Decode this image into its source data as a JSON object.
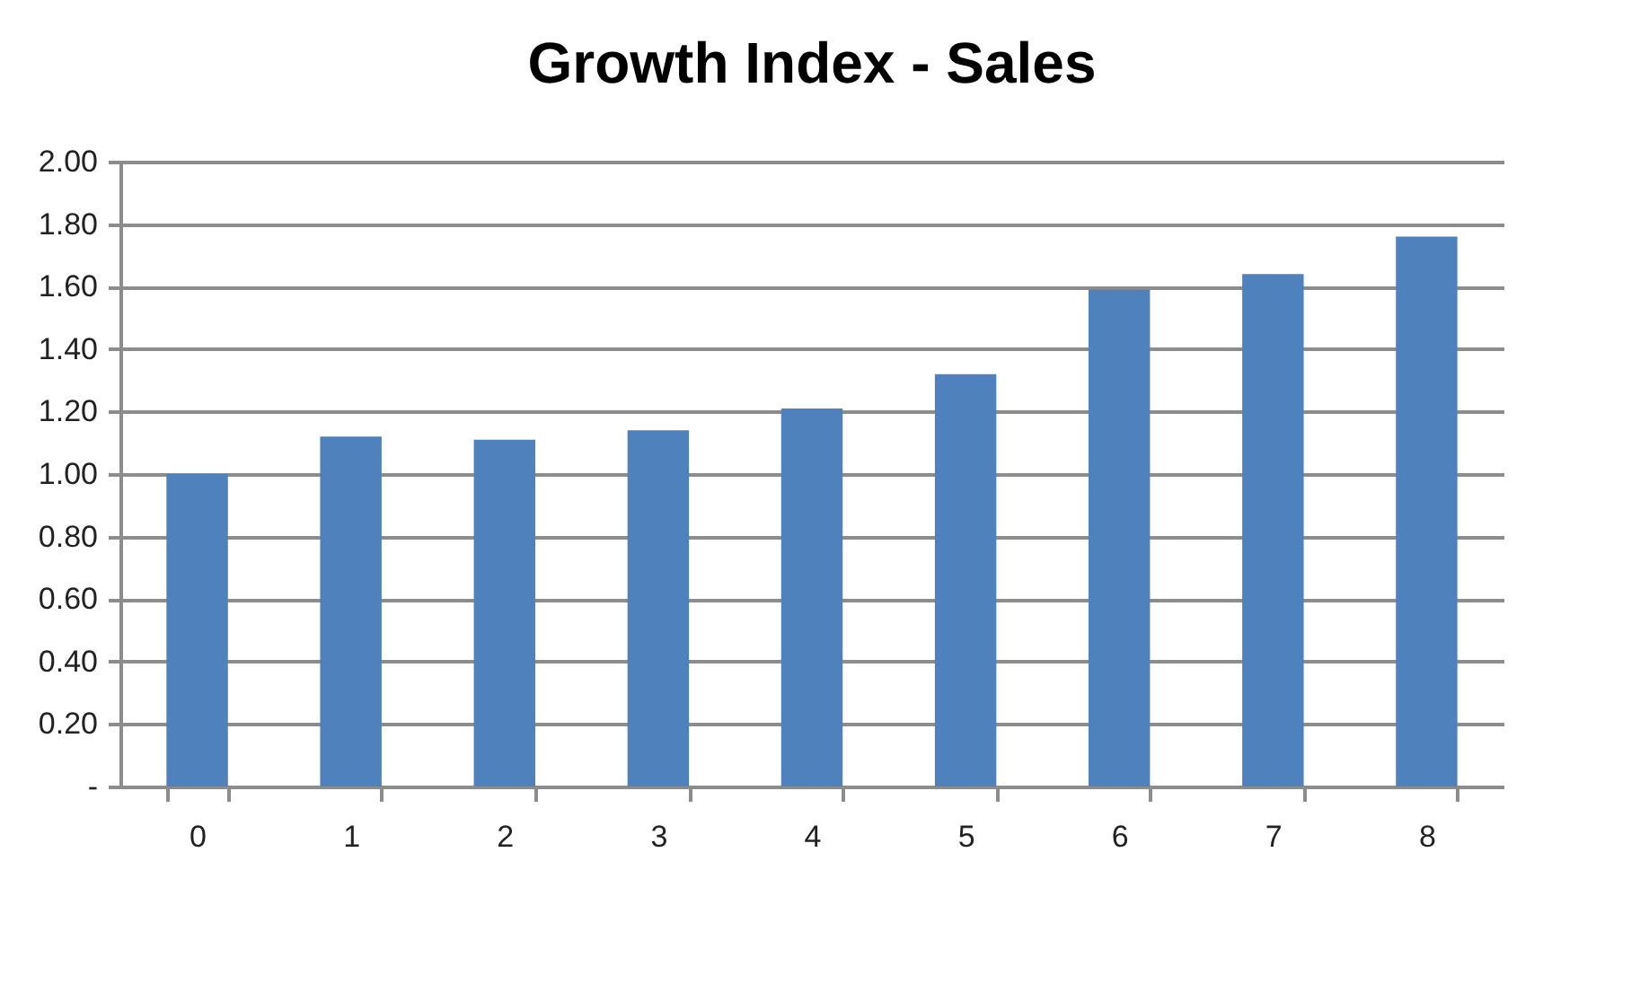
{
  "chart_data": {
    "type": "bar",
    "title": "Growth Index - Sales",
    "categories": [
      "0",
      "1",
      "2",
      "3",
      "4",
      "5",
      "6",
      "7",
      "8"
    ],
    "values": [
      1.0,
      1.12,
      1.11,
      1.14,
      1.21,
      1.32,
      1.59,
      1.64,
      1.76
    ],
    "color": "#4f81bd",
    "ylim": [
      0,
      2
    ],
    "yticks": [
      {
        "value": 0,
        "label": "-"
      },
      {
        "value": 0.2,
        "label": "0.20"
      },
      {
        "value": 0.4,
        "label": "0.40"
      },
      {
        "value": 0.6,
        "label": "0.60"
      },
      {
        "value": 0.8,
        "label": "0.80"
      },
      {
        "value": 1,
        "label": "1.00"
      },
      {
        "value": 1.2,
        "label": "1.20"
      },
      {
        "value": 1.4,
        "label": "1.40"
      },
      {
        "value": 1.6,
        "label": "1.60"
      },
      {
        "value": 1.8,
        "label": "1.80"
      },
      {
        "value": 2,
        "label": "2.00"
      }
    ],
    "grid": "y"
  }
}
